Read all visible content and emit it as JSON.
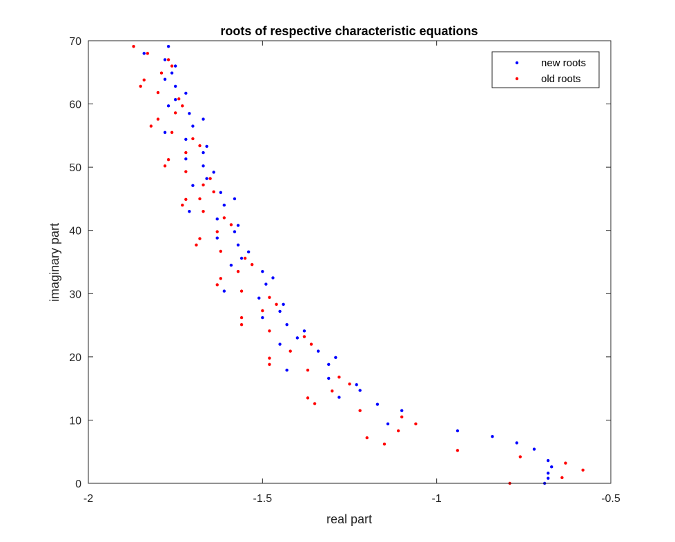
{
  "chart_data": {
    "type": "scatter",
    "title": "roots of respective characteristic equations",
    "xlabel": "real part",
    "ylabel": "imaginary part",
    "xlim": [
      -2,
      -0.5
    ],
    "ylim": [
      0,
      70
    ],
    "xticks": [
      -2,
      -1.5,
      -1,
      -0.5
    ],
    "xtick_labels": [
      "-2",
      "-1.5",
      "-1",
      "-0.5"
    ],
    "yticks": [
      0,
      10,
      20,
      30,
      40,
      50,
      60,
      70
    ],
    "ytick_labels": [
      "0",
      "10",
      "20",
      "30",
      "40",
      "50",
      "60",
      "70"
    ],
    "grid": false,
    "legend_position": "top-right",
    "series": [
      {
        "name": "new roots",
        "color": "#0000ff",
        "points": [
          [
            -1.77,
            69.1
          ],
          [
            -1.84,
            68.0
          ],
          [
            -1.78,
            67.0
          ],
          [
            -1.75,
            66.0
          ],
          [
            -1.76,
            64.9
          ],
          [
            -1.78,
            63.9
          ],
          [
            -1.75,
            62.8
          ],
          [
            -1.72,
            61.7
          ],
          [
            -1.75,
            60.7
          ],
          [
            -1.77,
            59.7
          ],
          [
            -1.71,
            58.5
          ],
          [
            -1.67,
            57.6
          ],
          [
            -1.7,
            56.5
          ],
          [
            -1.78,
            55.5
          ],
          [
            -1.72,
            54.4
          ],
          [
            -1.66,
            53.3
          ],
          [
            -1.67,
            52.3
          ],
          [
            -1.72,
            51.3
          ],
          [
            -1.67,
            50.2
          ],
          [
            -1.64,
            49.2
          ],
          [
            -1.66,
            48.2
          ],
          [
            -1.7,
            47.1
          ],
          [
            -1.62,
            46.0
          ],
          [
            -1.58,
            45.0
          ],
          [
            -1.61,
            44.0
          ],
          [
            -1.71,
            43.0
          ],
          [
            -1.63,
            41.8
          ],
          [
            -1.57,
            40.8
          ],
          [
            -1.58,
            39.8
          ],
          [
            -1.63,
            38.8
          ],
          [
            -1.57,
            37.7
          ],
          [
            -1.54,
            36.6
          ],
          [
            -1.56,
            35.6
          ],
          [
            -1.59,
            34.5
          ],
          [
            -1.5,
            33.5
          ],
          [
            -1.47,
            32.5
          ],
          [
            -1.49,
            31.5
          ],
          [
            -1.61,
            30.4
          ],
          [
            -1.51,
            29.3
          ],
          [
            -1.44,
            28.3
          ],
          [
            -1.45,
            27.2
          ],
          [
            -1.5,
            26.2
          ],
          [
            -1.43,
            25.1
          ],
          [
            -1.38,
            24.1
          ],
          [
            -1.4,
            23.0
          ],
          [
            -1.45,
            22.0
          ],
          [
            -1.34,
            20.9
          ],
          [
            -1.29,
            19.9
          ],
          [
            -1.31,
            18.8
          ],
          [
            -1.43,
            17.9
          ],
          [
            -1.31,
            16.6
          ],
          [
            -1.23,
            15.6
          ],
          [
            -1.22,
            14.7
          ],
          [
            -1.28,
            13.6
          ],
          [
            -1.17,
            12.5
          ],
          [
            -1.1,
            11.5
          ],
          [
            -1.14,
            9.4
          ],
          [
            -0.94,
            8.3
          ],
          [
            -0.84,
            7.4
          ],
          [
            -0.77,
            6.4
          ],
          [
            -0.72,
            5.4
          ],
          [
            -0.68,
            3.6
          ],
          [
            -0.67,
            2.6
          ],
          [
            -0.68,
            1.6
          ],
          [
            -0.68,
            0.8
          ],
          [
            -0.69,
            0.0
          ]
        ]
      },
      {
        "name": "old roots",
        "color": "#ff0000",
        "points": [
          [
            -1.87,
            69.1
          ],
          [
            -1.83,
            68.0
          ],
          [
            -1.77,
            67.0
          ],
          [
            -1.76,
            66.0
          ],
          [
            -1.79,
            64.9
          ],
          [
            -1.84,
            63.8
          ],
          [
            -1.85,
            62.8
          ],
          [
            -1.8,
            61.8
          ],
          [
            -1.74,
            60.8
          ],
          [
            -1.73,
            59.7
          ],
          [
            -1.75,
            58.6
          ],
          [
            -1.8,
            57.6
          ],
          [
            -1.82,
            56.5
          ],
          [
            -1.76,
            55.5
          ],
          [
            -1.7,
            54.5
          ],
          [
            -1.68,
            53.4
          ],
          [
            -1.72,
            52.3
          ],
          [
            -1.77,
            51.2
          ],
          [
            -1.78,
            50.2
          ],
          [
            -1.72,
            49.3
          ],
          [
            -1.65,
            48.2
          ],
          [
            -1.67,
            47.2
          ],
          [
            -1.64,
            46.1
          ],
          [
            -1.68,
            45.0
          ],
          [
            -1.72,
            44.9
          ],
          [
            -1.73,
            44.0
          ],
          [
            -1.67,
            43.0
          ],
          [
            -1.61,
            42.0
          ],
          [
            -1.59,
            40.9
          ],
          [
            -1.63,
            39.8
          ],
          [
            -1.68,
            38.7
          ],
          [
            -1.69,
            37.7
          ],
          [
            -1.62,
            36.7
          ],
          [
            -1.55,
            35.6
          ],
          [
            -1.53,
            34.6
          ],
          [
            -1.57,
            33.5
          ],
          [
            -1.62,
            32.4
          ],
          [
            -1.63,
            31.4
          ],
          [
            -1.56,
            30.4
          ],
          [
            -1.48,
            29.4
          ],
          [
            -1.46,
            28.3
          ],
          [
            -1.5,
            27.3
          ],
          [
            -1.56,
            26.2
          ],
          [
            -1.56,
            25.1
          ],
          [
            -1.48,
            24.1
          ],
          [
            -1.38,
            23.2
          ],
          [
            -1.36,
            22.0
          ],
          [
            -1.42,
            20.9
          ],
          [
            -1.48,
            19.8
          ],
          [
            -1.48,
            18.8
          ],
          [
            -1.37,
            17.9
          ],
          [
            -1.28,
            16.8
          ],
          [
            -1.25,
            15.7
          ],
          [
            -1.3,
            14.6
          ],
          [
            -1.37,
            13.5
          ],
          [
            -1.35,
            12.6
          ],
          [
            -1.22,
            11.5
          ],
          [
            -1.1,
            10.5
          ],
          [
            -1.06,
            9.4
          ],
          [
            -1.11,
            8.3
          ],
          [
            -1.2,
            7.2
          ],
          [
            -1.15,
            6.2
          ],
          [
            -0.94,
            5.2
          ],
          [
            -0.76,
            4.2
          ],
          [
            -0.63,
            3.2
          ],
          [
            -0.58,
            2.1
          ],
          [
            -0.64,
            0.9
          ],
          [
            -0.79,
            0.0
          ]
        ]
      }
    ]
  }
}
